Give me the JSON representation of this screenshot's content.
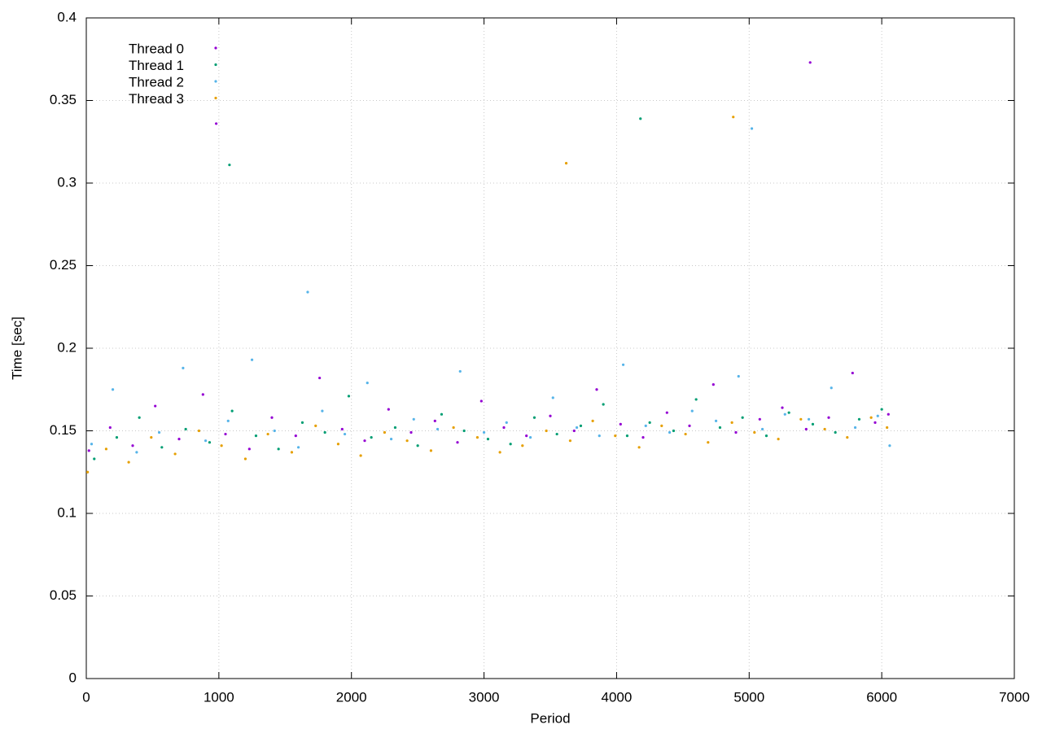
{
  "chart_data": {
    "type": "scatter",
    "xlabel": "Period",
    "ylabel": "Time [sec]",
    "xlim": [
      0,
      7000
    ],
    "xticks": [
      0,
      1000,
      2000,
      3000,
      4000,
      5000,
      6000,
      7000
    ],
    "ylim": [
      0,
      0.4
    ],
    "yticks": [
      0,
      0.05,
      0.1,
      0.15,
      0.2,
      0.25,
      0.3,
      0.35,
      0.4
    ],
    "grid": true,
    "legend": "top-left",
    "series": [
      {
        "name": "Thread 0",
        "color": "#9400d3",
        "x": [
          20,
          180,
          350,
          520,
          700,
          880,
          1050,
          1230,
          1400,
          1580,
          1760,
          1930,
          2100,
          2280,
          2450,
          2630,
          2800,
          2980,
          3150,
          3320,
          3500,
          3680,
          3850,
          4030,
          4200,
          4380,
          4550,
          4730,
          4900,
          5080,
          5250,
          5430,
          5600,
          5780,
          5950,
          6050,
          980,
          5460
        ],
        "values": [
          0.138,
          0.152,
          0.141,
          0.165,
          0.145,
          0.172,
          0.148,
          0.139,
          0.158,
          0.147,
          0.182,
          0.151,
          0.144,
          0.163,
          0.149,
          0.156,
          0.143,
          0.168,
          0.152,
          0.147,
          0.159,
          0.15,
          0.175,
          0.154,
          0.146,
          0.161,
          0.153,
          0.178,
          0.149,
          0.157,
          0.164,
          0.151,
          0.158,
          0.185,
          0.155,
          0.16,
          0.336,
          0.373
        ]
      },
      {
        "name": "Thread 1",
        "color": "#009e73",
        "x": [
          60,
          230,
          400,
          570,
          750,
          930,
          1100,
          1280,
          1450,
          1630,
          1800,
          1980,
          2150,
          2330,
          2500,
          2680,
          2850,
          3030,
          3200,
          3380,
          3550,
          3730,
          3900,
          4080,
          4250,
          4430,
          4600,
          4780,
          4950,
          5130,
          5300,
          5480,
          5650,
          5830,
          6000,
          1080,
          4180
        ],
        "values": [
          0.133,
          0.146,
          0.158,
          0.14,
          0.151,
          0.143,
          0.162,
          0.147,
          0.139,
          0.155,
          0.149,
          0.171,
          0.146,
          0.152,
          0.141,
          0.16,
          0.15,
          0.145,
          0.142,
          0.158,
          0.148,
          0.153,
          0.166,
          0.147,
          0.155,
          0.15,
          0.169,
          0.152,
          0.158,
          0.147,
          0.161,
          0.154,
          0.149,
          0.157,
          0.163,
          0.311,
          0.339
        ]
      },
      {
        "name": "Thread 2",
        "color": "#56b4e9",
        "x": [
          40,
          200,
          380,
          550,
          730,
          900,
          1070,
          1250,
          1420,
          1600,
          1780,
          1950,
          2120,
          2300,
          2470,
          2650,
          2820,
          3000,
          3170,
          3350,
          3520,
          3700,
          3870,
          4050,
          4220,
          4400,
          4570,
          4750,
          4920,
          5100,
          5270,
          5450,
          5620,
          5800,
          5970,
          6060,
          1670,
          5020
        ],
        "values": [
          0.142,
          0.175,
          0.137,
          0.149,
          0.188,
          0.144,
          0.156,
          0.193,
          0.15,
          0.14,
          0.162,
          0.148,
          0.179,
          0.145,
          0.157,
          0.151,
          0.186,
          0.149,
          0.155,
          0.146,
          0.17,
          0.152,
          0.147,
          0.19,
          0.153,
          0.149,
          0.162,
          0.156,
          0.183,
          0.151,
          0.16,
          0.157,
          0.176,
          0.152,
          0.159,
          0.141,
          0.234,
          0.333
        ]
      },
      {
        "name": "Thread 3",
        "color": "#e69f00",
        "x": [
          10,
          150,
          320,
          490,
          670,
          850,
          1020,
          1200,
          1370,
          1550,
          1730,
          1900,
          2070,
          2250,
          2420,
          2600,
          2770,
          2950,
          3120,
          3290,
          3470,
          3650,
          3820,
          3990,
          4170,
          4340,
          4520,
          4690,
          4870,
          5040,
          5220,
          5390,
          5570,
          5740,
          5920,
          6040,
          3620,
          4880
        ],
        "values": [
          0.125,
          0.139,
          0.131,
          0.146,
          0.136,
          0.15,
          0.141,
          0.133,
          0.148,
          0.137,
          0.153,
          0.142,
          0.135,
          0.149,
          0.144,
          0.138,
          0.152,
          0.146,
          0.137,
          0.141,
          0.15,
          0.144,
          0.156,
          0.147,
          0.14,
          0.153,
          0.148,
          0.143,
          0.155,
          0.149,
          0.145,
          0.157,
          0.151,
          0.146,
          0.158,
          0.152,
          0.312,
          0.34
        ]
      }
    ]
  }
}
